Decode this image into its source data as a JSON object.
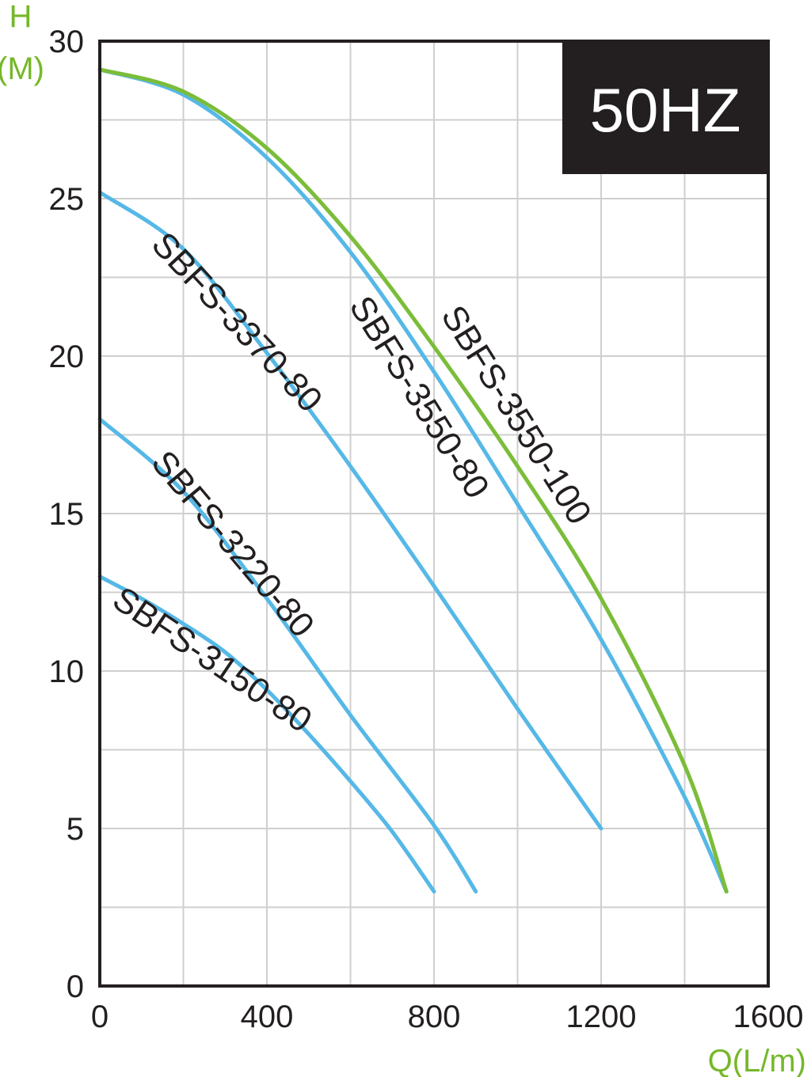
{
  "chart_data": {
    "type": "line",
    "badge": "50HZ",
    "y_axis_title": [
      "H",
      "(M)"
    ],
    "x_axis_title": "Q(L/m)",
    "xlim": [
      0,
      1600
    ],
    "ylim": [
      0,
      30
    ],
    "x_ticks": [
      "0",
      "400",
      "800",
      "1200",
      "1600"
    ],
    "y_ticks": [
      "0",
      "5",
      "10",
      "15",
      "20",
      "25",
      "30"
    ],
    "grid": true,
    "colors": {
      "blue": "#56b8e6",
      "green": "#7bbd3a",
      "axis_title": "#76b82a",
      "badge_bg": "#231f20"
    },
    "series": [
      {
        "name": "SBFS-3150-80",
        "color": "#56b8e6",
        "x": [
          0,
          100,
          200,
          300,
          400,
          500,
          600,
          700,
          800
        ],
        "y": [
          13.0,
          12.3,
          11.5,
          10.6,
          9.4,
          8.0,
          6.5,
          4.9,
          3.0
        ]
      },
      {
        "name": "SBFS-3220-80",
        "color": "#56b8e6",
        "x": [
          0,
          200,
          400,
          600,
          800,
          900
        ],
        "y": [
          18.0,
          15.7,
          12.3,
          8.6,
          5.1,
          3.0
        ]
      },
      {
        "name": "SBFS-3370-80",
        "color": "#56b8e6",
        "x": [
          0,
          200,
          400,
          600,
          800,
          1000,
          1200
        ],
        "y": [
          25.2,
          23.4,
          20.1,
          16.5,
          12.7,
          8.8,
          5.0
        ]
      },
      {
        "name": "SBFS-3550-80",
        "color": "#56b8e6",
        "x": [
          0,
          200,
          400,
          600,
          800,
          1000,
          1200,
          1400,
          1500
        ],
        "y": [
          29.1,
          28.3,
          26.3,
          23.3,
          19.5,
          15.3,
          11.0,
          6.0,
          3.0
        ]
      },
      {
        "name": "SBFS-3550-100",
        "color": "#7bbd3a",
        "x": [
          0,
          200,
          400,
          600,
          800,
          1000,
          1200,
          1400,
          1500
        ],
        "y": [
          29.1,
          28.4,
          26.6,
          23.8,
          20.3,
          16.5,
          12.3,
          7.0,
          3.0
        ]
      }
    ]
  }
}
